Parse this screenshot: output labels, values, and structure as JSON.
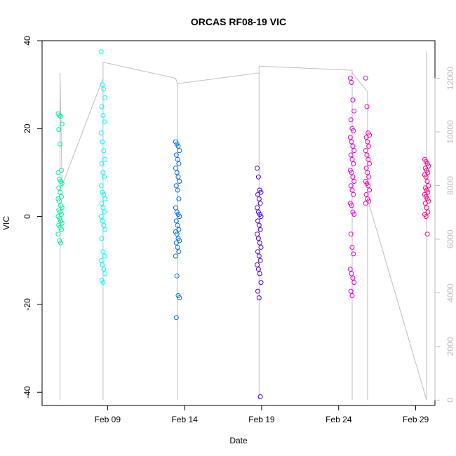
{
  "chart_data": {
    "type": "scatter",
    "title": "ORCAS RF08-19 VIC",
    "xlabel": "Date",
    "ylabel": "VIC",
    "y2label": "",
    "xlim": [
      "2016-02-04T18:00",
      "2016-03-01T06:00"
    ],
    "ylim": [
      -43,
      40
    ],
    "y2lim": [
      -200,
      13400
    ],
    "x_ticks": [
      {
        "date": "2016-02-09",
        "label": "Feb 09"
      },
      {
        "date": "2016-02-14",
        "label": "Feb 14"
      },
      {
        "date": "2016-02-19",
        "label": "Feb 19"
      },
      {
        "date": "2016-02-24",
        "label": "Feb 24"
      },
      {
        "date": "2016-02-29",
        "label": "Feb 29"
      }
    ],
    "y_ticks": [
      -40,
      -20,
      0,
      20,
      40
    ],
    "y2_ticks": [
      0,
      2000,
      4000,
      6000,
      8000,
      10000,
      12000
    ],
    "grid": false,
    "legend": "none",
    "series": [
      {
        "color": "#00f0a0",
        "center": "2016-02-05T22:00",
        "values": [
          23.4,
          23,
          22.8,
          21,
          19.8,
          16.5,
          10.5,
          10,
          8.5,
          8,
          7.5,
          6.5,
          5.5,
          4.5,
          4,
          3.5,
          2.5,
          2,
          1.5,
          1,
          0.5,
          0,
          -0.5,
          -1,
          -1.5,
          -2,
          -2.5,
          -3,
          -4,
          -5.5,
          -6
        ]
      },
      {
        "color": "#00ffff",
        "center": "2016-02-08T17:00",
        "values": [
          37.5,
          30,
          29,
          27,
          25,
          23,
          21.5,
          19,
          17,
          15,
          13,
          12,
          10,
          9,
          7,
          5.5,
          5,
          4,
          3,
          2,
          1,
          0,
          -1,
          -2,
          -3,
          -5,
          -8,
          -9,
          -10,
          -11,
          -12,
          -13,
          -14.5,
          -15
        ]
      },
      {
        "color": "#0070f0",
        "center": "2016-02-13T13:00",
        "values": [
          17,
          16.5,
          16,
          15,
          14,
          13,
          12,
          11,
          10,
          9,
          8,
          7,
          6,
          4,
          2,
          1,
          0.5,
          0,
          -1,
          -2,
          -3,
          -3.5,
          -4,
          -5,
          -5.5,
          -6,
          -7,
          -8,
          -9,
          -13.5,
          -18,
          -18.5,
          -23
        ]
      },
      {
        "color": "#5000e0",
        "center": "2016-02-18T20:00",
        "values": [
          11,
          9,
          6,
          5.5,
          5,
          4,
          3,
          2,
          1,
          0.5,
          0,
          -1,
          -2,
          -3,
          -4,
          -5,
          -6,
          -7,
          -8,
          -9,
          -10,
          -11,
          -12,
          -13,
          -15,
          -17,
          -18.5,
          -41
        ]
      },
      {
        "color": "#e000e0",
        "center": "2016-02-24T21:00",
        "values": [
          31.5,
          30.5,
          26.5,
          24,
          22,
          20,
          19.5,
          18,
          17,
          16,
          15,
          14,
          13,
          12,
          10.5,
          10,
          9,
          8,
          7,
          6,
          5,
          3,
          2.5,
          1,
          0.5,
          -4,
          -7,
          -8.5,
          -12,
          -13,
          -14,
          -15,
          -17,
          -18
        ]
      },
      {
        "color": "#ff00b0",
        "center": "2016-02-25T21:00",
        "values": [
          31.5,
          25,
          19,
          18.5,
          18,
          17,
          16,
          15,
          14,
          13,
          12,
          11,
          10,
          9,
          8,
          7.5,
          7,
          6,
          5,
          4,
          3.5,
          3
        ]
      },
      {
        "color": "#ff0080",
        "center": "2016-02-29T17:00",
        "values": [
          13,
          12.5,
          12,
          11.5,
          11,
          10.5,
          10,
          9.5,
          9,
          8,
          7,
          6.5,
          6,
          5.5,
          5,
          4.5,
          4,
          3.5,
          3,
          2,
          1,
          0.5,
          0,
          -4
        ]
      }
    ],
    "secondary_series": {
      "name": "",
      "color": "#bfbfbf",
      "points": [
        [
          "2016-02-05T22:00",
          0
        ],
        [
          "2016-02-05T22:00",
          12200
        ],
        [
          "2016-02-06T01:00",
          8000
        ],
        [
          "2016-02-08T17:00",
          12000
        ],
        [
          "2016-02-08T17:00",
          0
        ],
        [
          "2016-02-08T17:00",
          12600
        ],
        [
          "2016-02-13T10:00",
          12000
        ],
        [
          "2016-02-13T13:00",
          11800
        ],
        [
          "2016-02-13T13:00",
          0
        ],
        [
          "2016-02-13T13:00",
          11800
        ],
        [
          "2016-02-18T20:00",
          12200
        ],
        [
          "2016-02-18T20:00",
          0
        ],
        [
          "2016-02-18T20:00",
          12450
        ],
        [
          "2016-02-24T21:00",
          12300
        ],
        [
          "2016-02-24T21:00",
          0
        ],
        [
          "2016-02-24T21:00",
          12200
        ],
        [
          "2016-02-25T21:00",
          11500
        ],
        [
          "2016-02-25T21:00",
          0
        ],
        [
          "2016-02-25T21:00",
          7500
        ],
        [
          "2016-02-29T17:00",
          0
        ],
        [
          "2016-02-29T17:00",
          13000
        ]
      ]
    }
  }
}
